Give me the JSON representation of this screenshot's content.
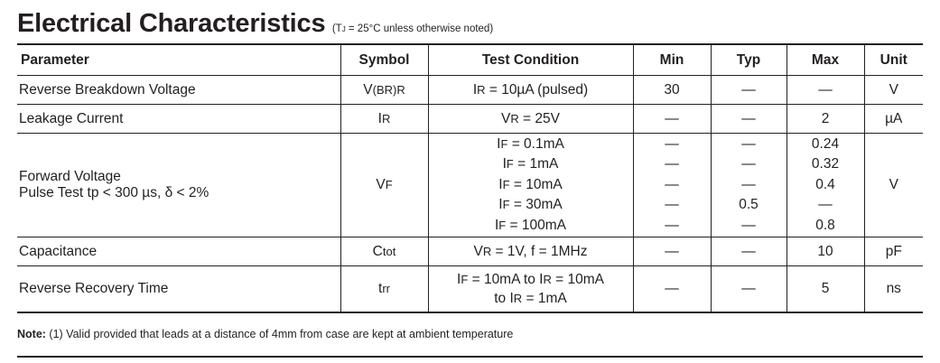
{
  "heading": {
    "title": "Electrical Characteristics",
    "condition_pre": "(T",
    "condition_sub": "J",
    "condition_post": " = 25°C unless otherwise noted)"
  },
  "table": {
    "headers": {
      "parameter": "Parameter",
      "symbol": "Symbol",
      "test_condition": "Test Condition",
      "min": "Min",
      "typ": "Typ",
      "max": "Max",
      "unit": "Unit"
    },
    "rows": [
      {
        "parameter": "Reverse Breakdown Voltage",
        "symbol": {
          "main": "V",
          "sub": "(BR)R"
        },
        "conditions": [
          {
            "a": "I",
            "as": "R",
            "b": " = 10µA (pulsed)"
          }
        ],
        "min": [
          "30"
        ],
        "typ": [
          "—"
        ],
        "max": [
          "—"
        ],
        "unit": "V"
      },
      {
        "parameter": "Leakage Current",
        "symbol": {
          "main": "I",
          "sub": "R"
        },
        "conditions": [
          {
            "a": "V",
            "as": "R",
            "b": " = 25V"
          }
        ],
        "min": [
          "—"
        ],
        "typ": [
          "—"
        ],
        "max": [
          "2"
        ],
        "unit": "µA"
      },
      {
        "parameter": "Forward Voltage",
        "parameter_line2": "Pulse Test tp < 300 µs, δ < 2%",
        "symbol": {
          "main": "V",
          "sub": "F"
        },
        "conditions": [
          {
            "a": "I",
            "as": "F",
            "b": " = 0.1mA"
          },
          {
            "a": "I",
            "as": "F",
            "b": " = 1mA"
          },
          {
            "a": "I",
            "as": "F",
            "b": " = 10mA"
          },
          {
            "a": "I",
            "as": "F",
            "b": " = 30mA"
          },
          {
            "a": "I",
            "as": "F",
            "b": " = 100mA"
          }
        ],
        "min": [
          "—",
          "—",
          "—",
          "—",
          "—"
        ],
        "typ": [
          "—",
          "—",
          "—",
          "0.5",
          "—"
        ],
        "max": [
          "0.24",
          "0.32",
          "0.4",
          "—",
          "0.8"
        ],
        "unit": "V"
      },
      {
        "parameter": "Capacitance",
        "symbol": {
          "main": "C",
          "sub": "tot"
        },
        "conditions": [
          {
            "a": "V",
            "as": "R",
            "b": " = 1V, f = 1MHz"
          }
        ],
        "min": [
          "—"
        ],
        "typ": [
          "—"
        ],
        "max": [
          "10"
        ],
        "unit": "pF"
      },
      {
        "parameter": "Reverse Recovery Time",
        "symbol": {
          "main": "t",
          "sub": "rr"
        },
        "conditions": [
          {
            "a": "I",
            "as": "F",
            "b": " = 10mA to I",
            "bs": "R",
            "c": " = 10mA"
          },
          {
            "a": "to I",
            "as": "R",
            "b": " = 1mA"
          }
        ],
        "min": [
          "—"
        ],
        "typ": [
          "—"
        ],
        "max": [
          "5"
        ],
        "unit": "ns"
      }
    ]
  },
  "note": {
    "label": "Note:",
    "text": " (1) Valid provided that leads at a distance of 4mm from case are kept at ambient temperature"
  }
}
